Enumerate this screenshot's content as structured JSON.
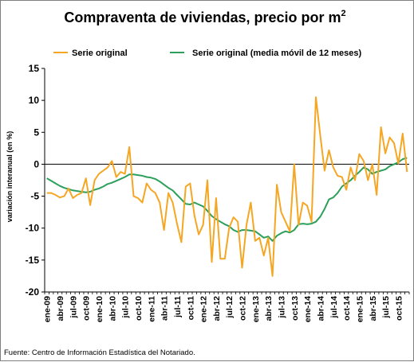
{
  "chart_data": {
    "type": "line",
    "title": "Compraventa de viviendas, precio por m",
    "title_superscript": "2",
    "ylabel": "variación interanual (en %)",
    "xlabel": "",
    "ylim": [
      -20,
      15
    ],
    "yticks": [
      15,
      10,
      5,
      0,
      -5,
      -10,
      -15,
      -20
    ],
    "grid": false,
    "legend_position": "top",
    "x_tick_labels": [
      "ene-09",
      "abr-09",
      "jul-09",
      "oct-09",
      "ene-10",
      "abr-10",
      "jul-10",
      "oct-10",
      "ene-11",
      "abr-11",
      "jul-11",
      "oct-11",
      "ene-12",
      "abr-12",
      "jul-12",
      "oct-12",
      "ene-13",
      "abr-13",
      "jul-13",
      "oct-13",
      "ene-14",
      "abr-14",
      "jul-14",
      "oct-14",
      "ene-15",
      "abr-15",
      "jul-15",
      "oct-15"
    ],
    "x": [
      "ene-09",
      "feb-09",
      "mar-09",
      "abr-09",
      "may-09",
      "jun-09",
      "jul-09",
      "ago-09",
      "sep-09",
      "oct-09",
      "nov-09",
      "dic-09",
      "ene-10",
      "feb-10",
      "mar-10",
      "abr-10",
      "may-10",
      "jun-10",
      "jul-10",
      "ago-10",
      "sep-10",
      "oct-10",
      "nov-10",
      "dic-10",
      "ene-11",
      "feb-11",
      "mar-11",
      "abr-11",
      "may-11",
      "jun-11",
      "jul-11",
      "ago-11",
      "sep-11",
      "oct-11",
      "nov-11",
      "dic-11",
      "ene-12",
      "feb-12",
      "mar-12",
      "abr-12",
      "may-12",
      "jun-12",
      "jul-12",
      "ago-12",
      "sep-12",
      "oct-12",
      "nov-12",
      "dic-12",
      "ene-13",
      "feb-13",
      "mar-13",
      "abr-13",
      "may-13",
      "jun-13",
      "jul-13",
      "ago-13",
      "sep-13",
      "oct-13",
      "nov-13",
      "dic-13",
      "ene-14",
      "feb-14",
      "mar-14",
      "abr-14",
      "may-14",
      "jun-14",
      "jul-14",
      "ago-14",
      "sep-14",
      "oct-14",
      "nov-14",
      "dic-14",
      "ene-15",
      "feb-15",
      "mar-15",
      "abr-15",
      "may-15",
      "jun-15",
      "jul-15",
      "ago-15",
      "sep-15",
      "oct-15",
      "nov-15",
      "dic-15"
    ],
    "series": [
      {
        "name": "Serie original",
        "color": "#f5a623",
        "values": [
          -4.5,
          -4.5,
          -4.8,
          -5.2,
          -5.0,
          -3.8,
          -5.3,
          -4.8,
          -4.5,
          -2.2,
          -6.4,
          -2.5,
          -1.5,
          -1.0,
          -0.5,
          0.5,
          -2.0,
          -1.2,
          -1.5,
          2.7,
          -5.0,
          -5.3,
          -6.0,
          -3.0,
          -4.0,
          -4.5,
          -6.0,
          -10.3,
          -4.5,
          -6.0,
          -9.3,
          -12.2,
          -3.5,
          -3.0,
          -8.0,
          -11.0,
          -9.5,
          -2.5,
          -15.3,
          -5.3,
          -14.8,
          -14.8,
          -10.0,
          -8.3,
          -9.0,
          -16.2,
          -9.5,
          -6.0,
          -12.0,
          -11.5,
          -14.3,
          -11.5,
          -17.5,
          -3.2,
          -7.5,
          -9.0,
          -10.5,
          0.0,
          -9.5,
          -6.0,
          -6.5,
          -9.0,
          10.5,
          4.5,
          -1.0,
          2.2,
          -0.5,
          -1.8,
          -2.0,
          -4.0,
          -0.5,
          -2.5,
          1.6,
          0.5,
          -2.5,
          0.0,
          -4.8,
          5.8,
          1.7,
          4.2,
          3.3,
          0.1,
          4.8,
          -1.2
        ]
      },
      {
        "name": "Serie original (media móvil de 12 meses)",
        "color": "#2ca05a",
        "values": [
          -2.2,
          -2.6,
          -3.0,
          -3.4,
          -3.7,
          -3.9,
          -4.1,
          -4.2,
          -4.3,
          -4.4,
          -4.3,
          -4.0,
          -3.8,
          -3.5,
          -3.1,
          -2.9,
          -2.6,
          -2.3,
          -2.0,
          -1.6,
          -1.6,
          -1.7,
          -1.8,
          -2.0,
          -2.1,
          -2.3,
          -2.7,
          -3.2,
          -3.7,
          -4.1,
          -4.8,
          -5.5,
          -6.2,
          -6.3,
          -6.0,
          -6.3,
          -6.6,
          -7.3,
          -8.1,
          -8.6,
          -9.0,
          -9.4,
          -9.7,
          -10.3,
          -10.6,
          -10.3,
          -10.3,
          -10.4,
          -10.5,
          -11.0,
          -11.5,
          -11.3,
          -12.0,
          -11.2,
          -10.8,
          -10.5,
          -10.7,
          -10.3,
          -9.4,
          -9.3,
          -9.4,
          -9.3,
          -9.0,
          -8.2,
          -7.0,
          -5.5,
          -5.2,
          -4.5,
          -3.5,
          -3.0,
          -2.5,
          -1.8,
          -1.2,
          -0.5,
          -0.8,
          -1.5,
          -1.2,
          -1.0,
          -0.8,
          -0.3,
          0.0,
          0.3,
          0.8,
          1.0
        ]
      }
    ]
  },
  "source": "Fuente: Centro de Información Estadística del Notariado."
}
